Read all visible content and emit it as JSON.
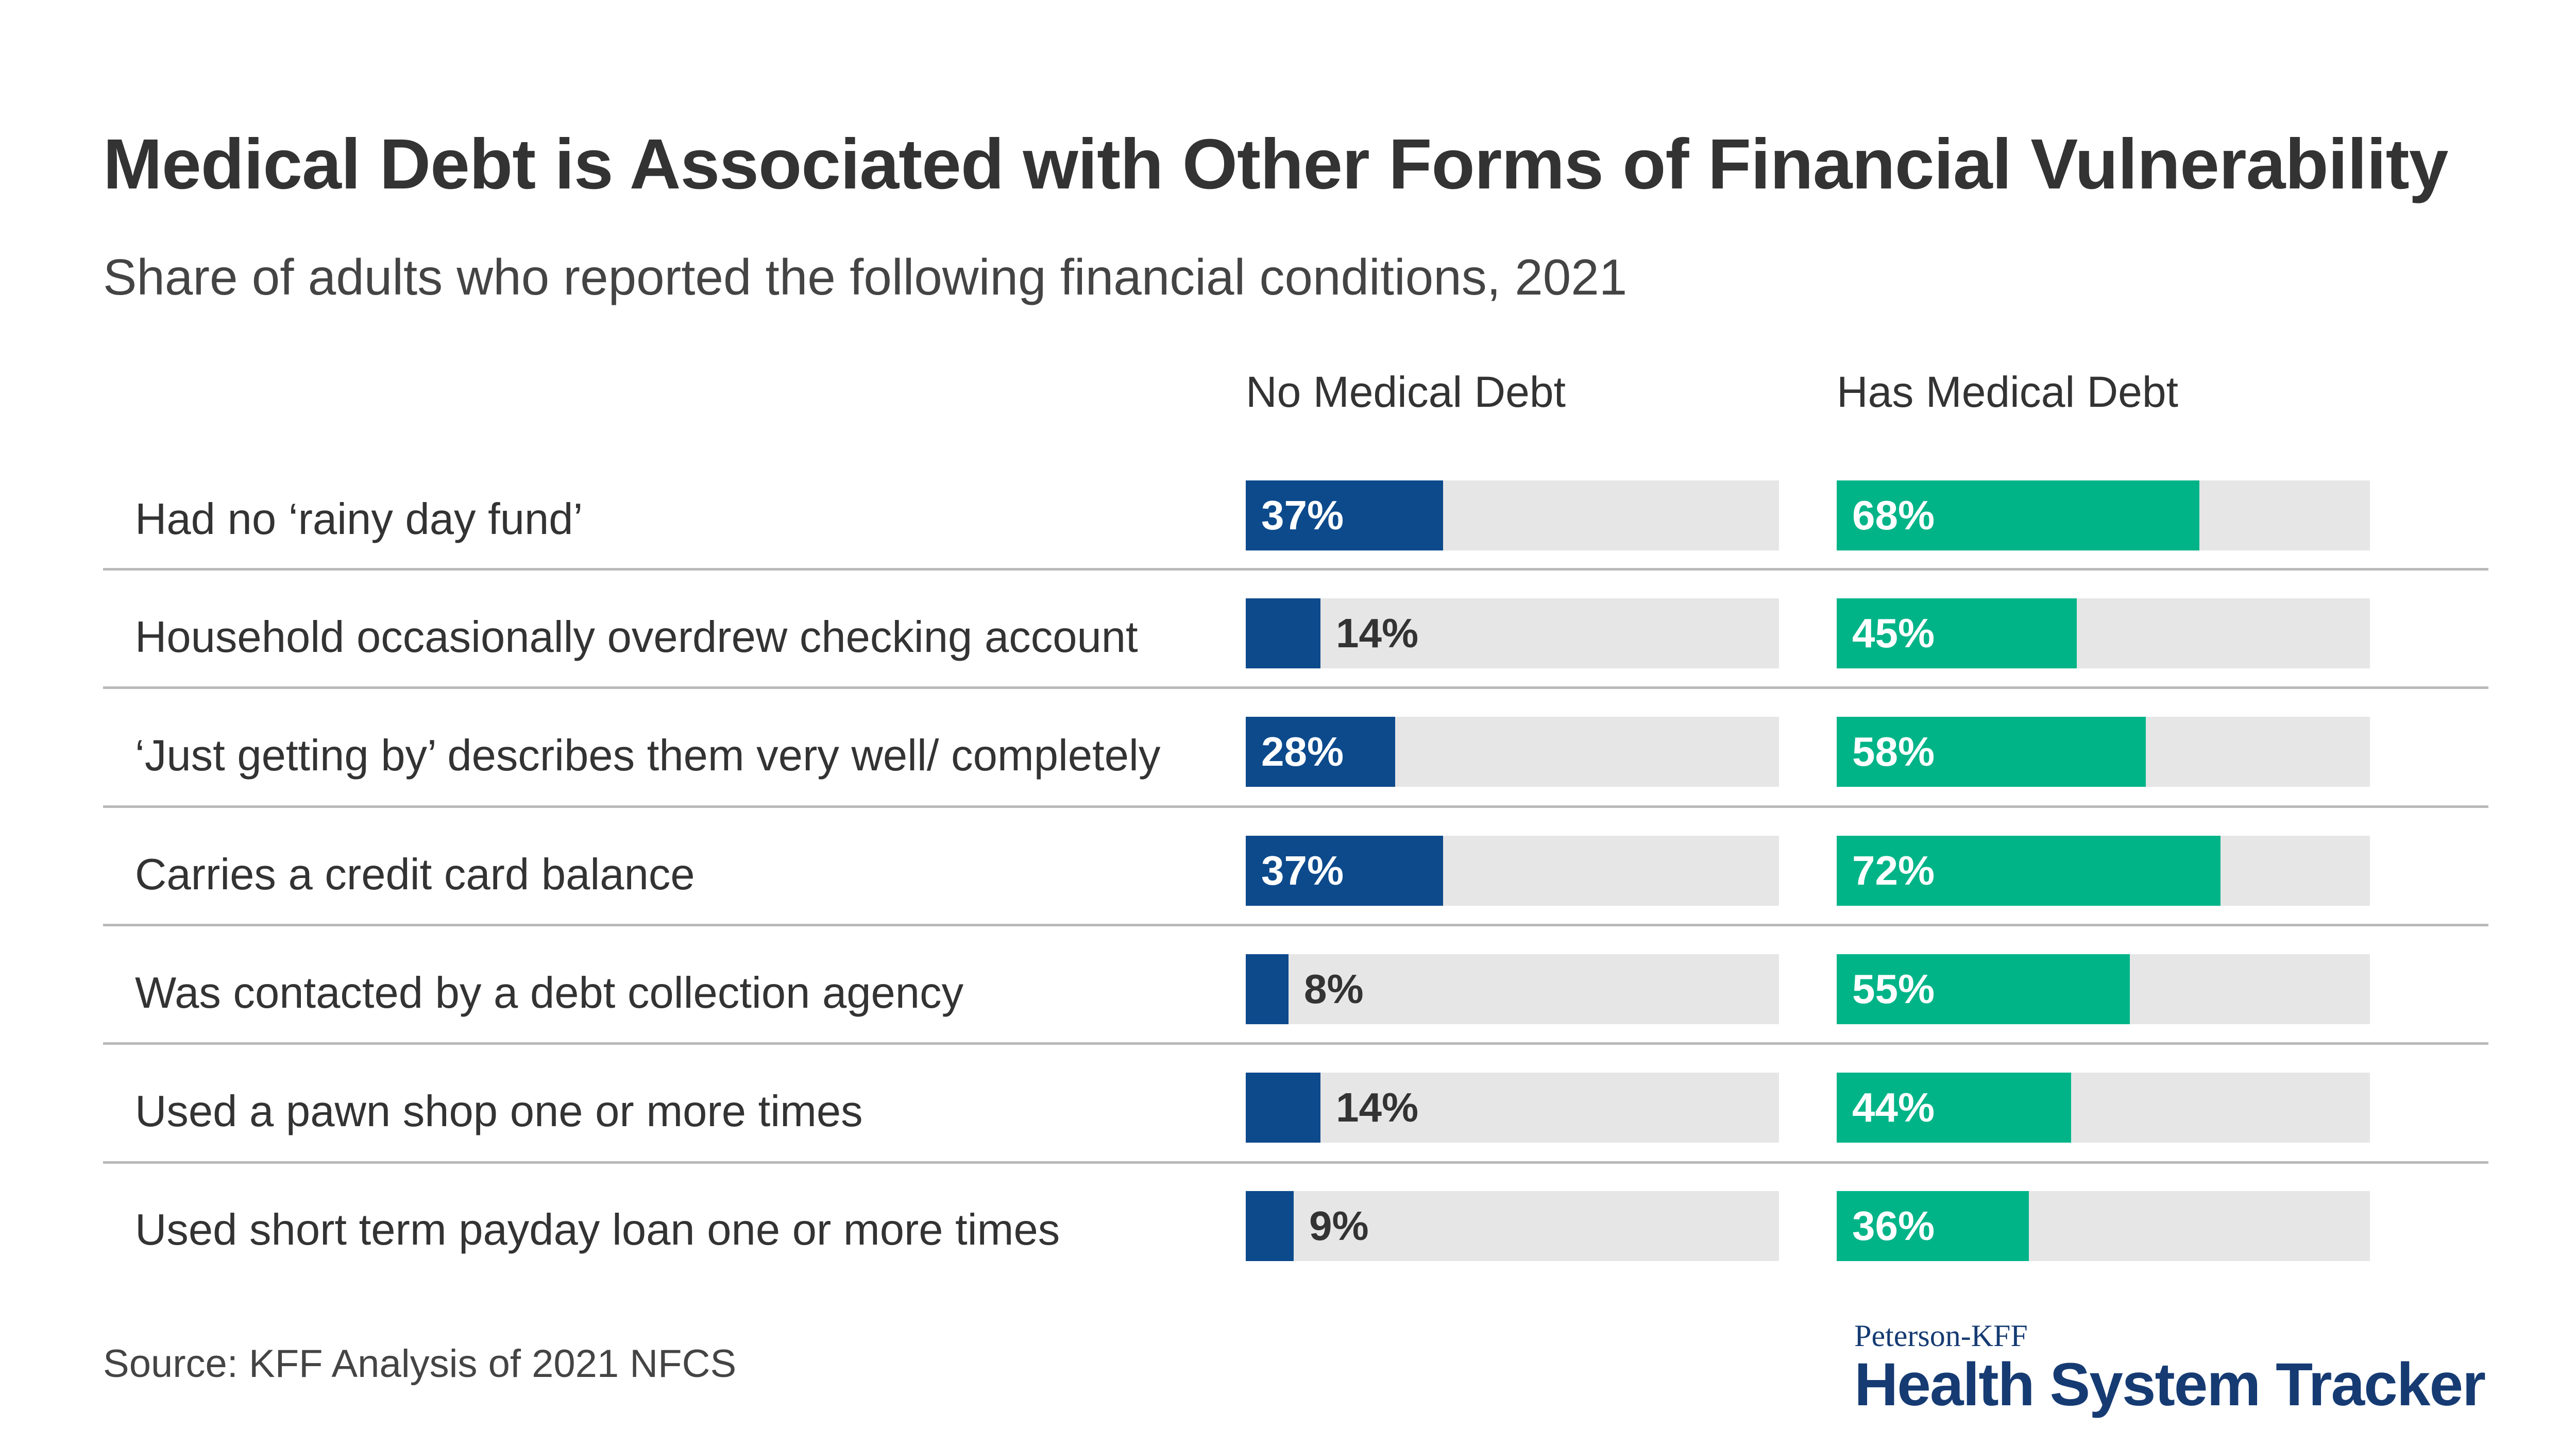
{
  "chart_data": {
    "type": "bar",
    "title": "Medical Debt is Associated with Other Forms of Financial Vulnerability",
    "subtitle": "Share of adults who reported the following financial conditions, 2021",
    "categories": [
      "Had no ‘rainy day fund’",
      "Household occasionally overdrew checking account",
      "‘Just getting by’ describes them very well/ completely",
      "Carries a credit card balance",
      "Was contacted by a debt collection agency",
      "Used a pawn shop one or more times",
      "Used short term payday loan one or more times"
    ],
    "series": [
      {
        "name": "No Medical Debt",
        "values": [
          37,
          14,
          28,
          37,
          8,
          14,
          9
        ],
        "labels": [
          "37%",
          "14%",
          "28%",
          "37%",
          "8%",
          "14%",
          "9%"
        ],
        "color": "#0c4a8c"
      },
      {
        "name": "Has Medical Debt",
        "values": [
          68,
          45,
          58,
          72,
          55,
          44,
          36
        ],
        "labels": [
          "68%",
          "45%",
          "58%",
          "72%",
          "55%",
          "44%",
          "36%"
        ],
        "color": "#00b488"
      }
    ],
    "xlim": [
      0,
      100
    ],
    "track_color": "#e6e6e6",
    "source": "Source: KFF Analysis of 2021 NFCS"
  },
  "logo": {
    "top": "Peterson-KFF",
    "main": "Health System Tracker",
    "color": "#163b73"
  }
}
